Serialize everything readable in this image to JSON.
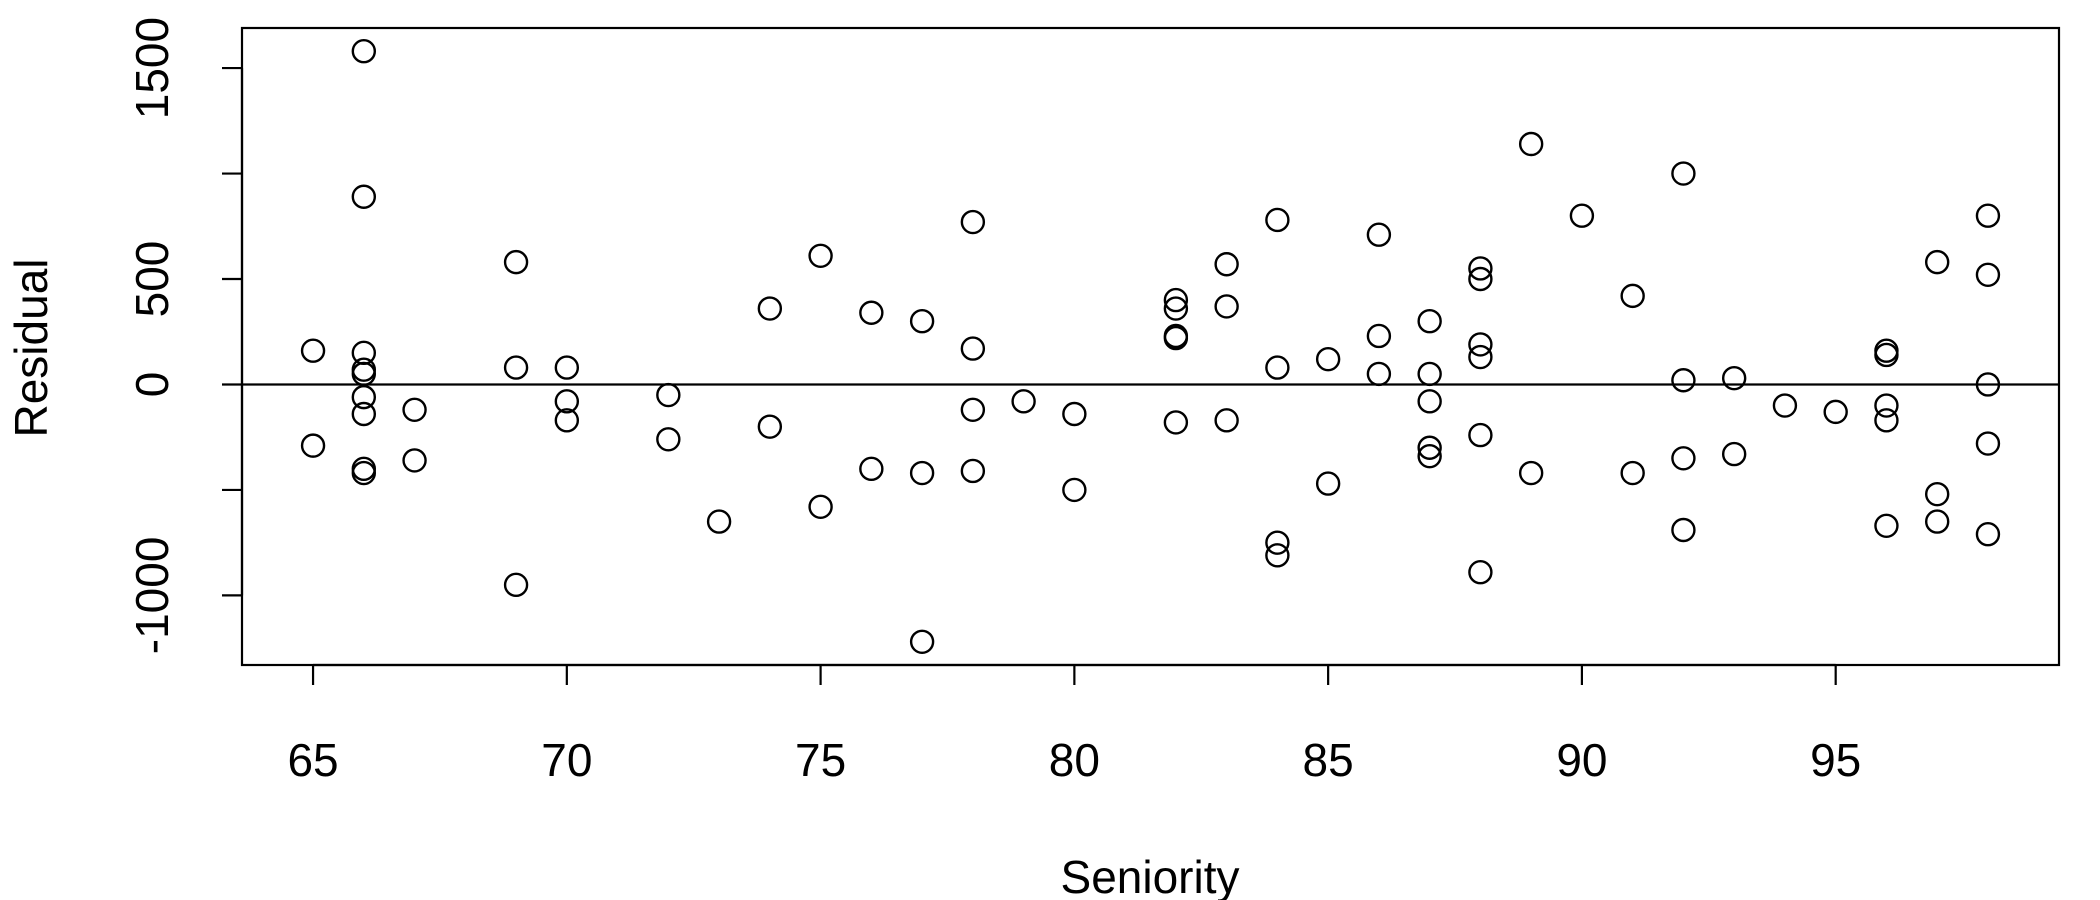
{
  "chart_data": {
    "type": "scatter",
    "title": "",
    "xlabel": "Seniority",
    "ylabel": "Residual",
    "xlim": [
      63.6,
      99.4
    ],
    "ylim": [
      -1330,
      1690
    ],
    "x_ticks": [
      65,
      70,
      75,
      80,
      85,
      90,
      95
    ],
    "x_tick_labels": [
      "65",
      "70",
      "75",
      "80",
      "85",
      "90",
      "95"
    ],
    "y_ticks": [
      -1000,
      -500,
      0,
      500,
      1000,
      1500
    ],
    "y_tick_labels": [
      "-1000",
      "",
      "0",
      "500",
      "",
      "1500"
    ],
    "reference_line_y": 0,
    "marker": "open-circle",
    "color": "#000000",
    "points": [
      [
        65,
        160
      ],
      [
        65,
        -290
      ],
      [
        66,
        1580
      ],
      [
        66,
        890
      ],
      [
        66,
        150
      ],
      [
        66,
        70
      ],
      [
        66,
        50
      ],
      [
        66,
        -60
      ],
      [
        66,
        -140
      ],
      [
        66,
        -400
      ],
      [
        66,
        -420
      ],
      [
        67,
        -120
      ],
      [
        67,
        -360
      ],
      [
        69,
        580
      ],
      [
        69,
        80
      ],
      [
        69,
        -950
      ],
      [
        70,
        80
      ],
      [
        70,
        -80
      ],
      [
        70,
        -170
      ],
      [
        72,
        -50
      ],
      [
        72,
        -260
      ],
      [
        73,
        -650
      ],
      [
        74,
        360
      ],
      [
        74,
        -200
      ],
      [
        75,
        610
      ],
      [
        75,
        -580
      ],
      [
        76,
        340
      ],
      [
        76,
        -400
      ],
      [
        77,
        300
      ],
      [
        77,
        -420
      ],
      [
        77,
        -1220
      ],
      [
        78,
        770
      ],
      [
        78,
        170
      ],
      [
        78,
        -120
      ],
      [
        78,
        -410
      ],
      [
        79,
        -80
      ],
      [
        80,
        -140
      ],
      [
        80,
        -500
      ],
      [
        82,
        400
      ],
      [
        82,
        360
      ],
      [
        82,
        230
      ],
      [
        82,
        220
      ],
      [
        82,
        -180
      ],
      [
        83,
        570
      ],
      [
        83,
        370
      ],
      [
        83,
        -170
      ],
      [
        84,
        780
      ],
      [
        84,
        80
      ],
      [
        84,
        -750
      ],
      [
        84,
        -810
      ],
      [
        85,
        120
      ],
      [
        85,
        -470
      ],
      [
        86,
        710
      ],
      [
        86,
        230
      ],
      [
        86,
        50
      ],
      [
        87,
        300
      ],
      [
        87,
        50
      ],
      [
        87,
        -80
      ],
      [
        87,
        -300
      ],
      [
        87,
        -340
      ],
      [
        88,
        550
      ],
      [
        88,
        500
      ],
      [
        88,
        190
      ],
      [
        88,
        130
      ],
      [
        88,
        -240
      ],
      [
        88,
        -890
      ],
      [
        89,
        1140
      ],
      [
        89,
        -420
      ],
      [
        90,
        800
      ],
      [
        91,
        420
      ],
      [
        91,
        -420
      ],
      [
        92,
        1000
      ],
      [
        92,
        20
      ],
      [
        92,
        -350
      ],
      [
        92,
        -690
      ],
      [
        93,
        30
      ],
      [
        93,
        -330
      ],
      [
        94,
        -100
      ],
      [
        95,
        -130
      ],
      [
        96,
        160
      ],
      [
        96,
        140
      ],
      [
        96,
        -100
      ],
      [
        96,
        -170
      ],
      [
        96,
        -670
      ],
      [
        97,
        580
      ],
      [
        97,
        -520
      ],
      [
        97,
        -650
      ],
      [
        98,
        800
      ],
      [
        98,
        520
      ],
      [
        98,
        0
      ],
      [
        98,
        -280
      ],
      [
        98,
        -710
      ]
    ]
  }
}
